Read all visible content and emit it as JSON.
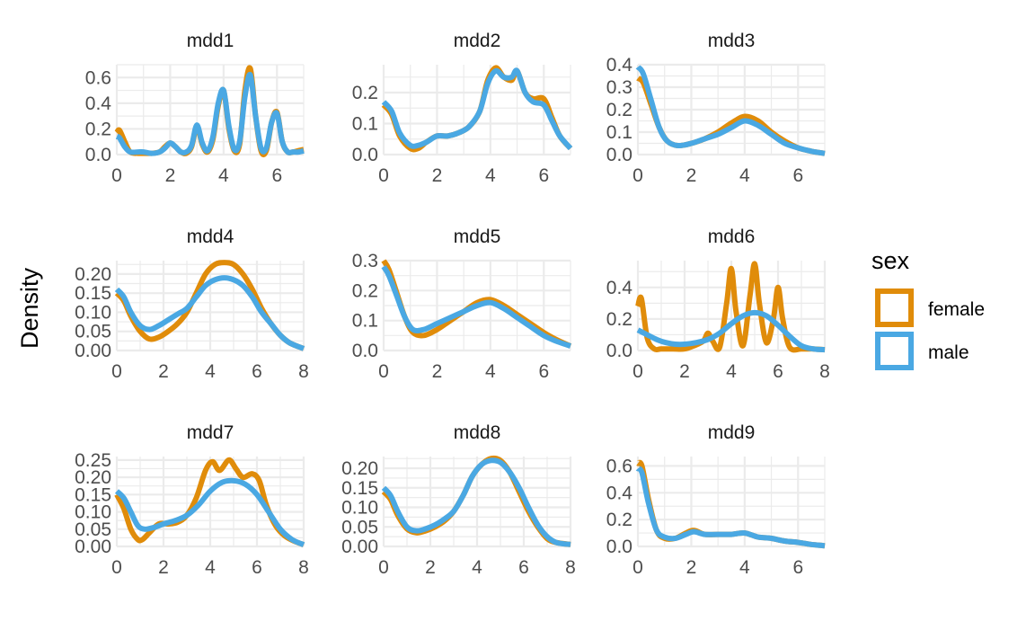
{
  "colors": {
    "female": "#E08C0A",
    "male": "#4AA8E3",
    "grid": "#EBEBEB"
  },
  "legend": {
    "title": "sex",
    "entries": [
      {
        "label": "female",
        "color": "#E08C0A"
      },
      {
        "label": "male",
        "color": "#4AA8E3"
      }
    ]
  },
  "y_axis_label": "Density",
  "chart_data": [
    {
      "type": "line",
      "title": "mdd1",
      "xlim": [
        0,
        7
      ],
      "ylim": [
        0,
        0.7
      ],
      "x_ticks": [
        0,
        2,
        4,
        6
      ],
      "y_ticks": [
        0,
        0.2,
        0.4,
        0.6
      ],
      "y_tick_labels": [
        "0.0",
        "0.2",
        "0.4",
        "0.6"
      ],
      "series": [
        {
          "name": "female",
          "x": [
            0,
            0.1,
            0.3,
            0.5,
            0.8,
            1,
            1.3,
            1.6,
            1.8,
            2,
            2.2,
            2.4,
            2.6,
            2.8,
            3,
            3.2,
            3.4,
            3.6,
            3.8,
            4,
            4.2,
            4.4,
            4.6,
            4.8,
            5,
            5.2,
            5.4,
            5.6,
            5.8,
            6,
            6.2,
            6.4,
            6.6,
            6.8,
            7
          ],
          "y": [
            0.17,
            0.19,
            0.1,
            0.02,
            0.01,
            0.01,
            0.01,
            0.02,
            0.06,
            0.09,
            0.06,
            0.02,
            0.01,
            0.06,
            0.22,
            0.08,
            0.02,
            0.12,
            0.38,
            0.5,
            0.2,
            0.03,
            0.08,
            0.5,
            0.67,
            0.3,
            0.03,
            0.03,
            0.25,
            0.33,
            0.1,
            0.02,
            0.02,
            0.03,
            0.04
          ]
        },
        {
          "name": "male",
          "x": [
            0,
            0.1,
            0.3,
            0.5,
            0.8,
            1,
            1.3,
            1.6,
            1.8,
            2,
            2.2,
            2.4,
            2.6,
            2.8,
            3,
            3.2,
            3.4,
            3.6,
            3.8,
            4,
            4.2,
            4.4,
            4.6,
            4.8,
            5,
            5.2,
            5.4,
            5.6,
            5.8,
            6,
            6.2,
            6.4,
            6.6,
            6.8,
            7
          ],
          "y": [
            0.14,
            0.13,
            0.06,
            0.02,
            0.02,
            0.02,
            0.01,
            0.02,
            0.05,
            0.09,
            0.06,
            0.02,
            0.02,
            0.07,
            0.23,
            0.09,
            0.03,
            0.14,
            0.4,
            0.5,
            0.22,
            0.04,
            0.1,
            0.45,
            0.62,
            0.3,
            0.05,
            0.05,
            0.25,
            0.32,
            0.1,
            0.02,
            0.02,
            0.02,
            0.03
          ]
        }
      ]
    },
    {
      "type": "line",
      "title": "mdd2",
      "xlim": [
        0,
        7
      ],
      "ylim": [
        0,
        0.29
      ],
      "x_ticks": [
        0,
        2,
        4,
        6
      ],
      "y_ticks": [
        0,
        0.1,
        0.2
      ],
      "y_tick_labels": [
        "0.0",
        "0.1",
        "0.2"
      ],
      "series": [
        {
          "name": "female",
          "x": [
            0,
            0.3,
            0.6,
            1,
            1.3,
            1.6,
            2,
            2.4,
            2.8,
            3.2,
            3.6,
            3.9,
            4.2,
            4.5,
            4.8,
            5,
            5.3,
            5.6,
            6,
            6.3,
            6.6,
            7
          ],
          "y": [
            0.16,
            0.13,
            0.06,
            0.02,
            0.02,
            0.04,
            0.06,
            0.06,
            0.07,
            0.09,
            0.14,
            0.24,
            0.28,
            0.25,
            0.24,
            0.27,
            0.2,
            0.18,
            0.18,
            0.12,
            0.06,
            0.02
          ]
        },
        {
          "name": "male",
          "x": [
            0,
            0.3,
            0.6,
            1,
            1.3,
            1.6,
            2,
            2.4,
            2.8,
            3.2,
            3.6,
            3.9,
            4.2,
            4.5,
            4.8,
            5,
            5.3,
            5.6,
            6,
            6.3,
            6.6,
            7
          ],
          "y": [
            0.17,
            0.14,
            0.07,
            0.03,
            0.03,
            0.04,
            0.06,
            0.06,
            0.07,
            0.09,
            0.14,
            0.23,
            0.27,
            0.25,
            0.25,
            0.27,
            0.2,
            0.17,
            0.16,
            0.11,
            0.06,
            0.02
          ]
        }
      ]
    },
    {
      "type": "line",
      "title": "mdd3",
      "xlim": [
        0,
        7
      ],
      "ylim": [
        0,
        0.4
      ],
      "x_ticks": [
        0,
        2,
        4,
        6
      ],
      "y_ticks": [
        0,
        0.1,
        0.2,
        0.3,
        0.4
      ],
      "y_tick_labels": [
        "0.0",
        "0.1",
        "0.2",
        "0.3",
        "0.4"
      ],
      "series": [
        {
          "name": "female",
          "x": [
            0,
            0.2,
            0.5,
            0.8,
            1.1,
            1.5,
            2,
            2.5,
            3,
            3.5,
            4,
            4.5,
            5,
            5.5,
            6,
            6.5,
            7
          ],
          "y": [
            0.34,
            0.32,
            0.22,
            0.12,
            0.06,
            0.04,
            0.05,
            0.07,
            0.1,
            0.14,
            0.17,
            0.15,
            0.1,
            0.06,
            0.03,
            0.015,
            0.005
          ]
        },
        {
          "name": "male",
          "x": [
            0,
            0.2,
            0.5,
            0.8,
            1.1,
            1.5,
            2,
            2.5,
            3,
            3.5,
            4,
            4.5,
            5,
            5.5,
            6,
            6.5,
            7
          ],
          "y": [
            0.39,
            0.36,
            0.24,
            0.12,
            0.06,
            0.04,
            0.05,
            0.07,
            0.09,
            0.12,
            0.15,
            0.13,
            0.09,
            0.05,
            0.03,
            0.015,
            0.005
          ]
        }
      ]
    },
    {
      "type": "line",
      "title": "mdd4",
      "xlim": [
        0,
        8
      ],
      "ylim": [
        0,
        0.235
      ],
      "x_ticks": [
        0,
        2,
        4,
        6,
        8
      ],
      "y_ticks": [
        0,
        0.05,
        0.1,
        0.15,
        0.2
      ],
      "y_tick_labels": [
        "0.00",
        "0.05",
        "0.10",
        "0.15",
        "0.20"
      ],
      "series": [
        {
          "name": "female",
          "x": [
            0,
            0.3,
            0.6,
            1,
            1.4,
            1.8,
            2.2,
            2.6,
            3,
            3.4,
            3.8,
            4.2,
            4.6,
            5,
            5.4,
            5.8,
            6.2,
            6.6,
            7,
            7.4,
            8
          ],
          "y": [
            0.15,
            0.13,
            0.09,
            0.05,
            0.03,
            0.035,
            0.05,
            0.07,
            0.1,
            0.15,
            0.2,
            0.225,
            0.23,
            0.225,
            0.2,
            0.16,
            0.11,
            0.07,
            0.04,
            0.02,
            0.005
          ]
        },
        {
          "name": "male",
          "x": [
            0,
            0.3,
            0.6,
            1,
            1.4,
            1.8,
            2.2,
            2.6,
            3,
            3.4,
            3.8,
            4.2,
            4.6,
            5,
            5.4,
            5.8,
            6.2,
            6.6,
            7,
            7.4,
            8
          ],
          "y": [
            0.16,
            0.14,
            0.1,
            0.065,
            0.055,
            0.065,
            0.08,
            0.095,
            0.11,
            0.14,
            0.17,
            0.185,
            0.19,
            0.185,
            0.17,
            0.14,
            0.1,
            0.07,
            0.04,
            0.02,
            0.005
          ]
        }
      ]
    },
    {
      "type": "line",
      "title": "mdd5",
      "xlim": [
        0,
        7
      ],
      "ylim": [
        0,
        0.3
      ],
      "x_ticks": [
        0,
        2,
        4,
        6
      ],
      "y_ticks": [
        0,
        0.1,
        0.2,
        0.3
      ],
      "y_tick_labels": [
        "0.0",
        "0.1",
        "0.2",
        "0.3"
      ],
      "series": [
        {
          "name": "female",
          "x": [
            0,
            0.2,
            0.5,
            0.8,
            1.1,
            1.5,
            2,
            2.5,
            3,
            3.5,
            4,
            4.5,
            5,
            5.5,
            6,
            6.5,
            7
          ],
          "y": [
            0.3,
            0.27,
            0.19,
            0.11,
            0.06,
            0.05,
            0.07,
            0.1,
            0.13,
            0.16,
            0.17,
            0.15,
            0.12,
            0.09,
            0.06,
            0.035,
            0.015
          ]
        },
        {
          "name": "male",
          "x": [
            0,
            0.2,
            0.5,
            0.8,
            1.1,
            1.5,
            2,
            2.5,
            3,
            3.5,
            4,
            4.5,
            5,
            5.5,
            6,
            6.5,
            7
          ],
          "y": [
            0.28,
            0.25,
            0.18,
            0.11,
            0.07,
            0.07,
            0.09,
            0.11,
            0.13,
            0.15,
            0.16,
            0.14,
            0.11,
            0.08,
            0.05,
            0.03,
            0.015
          ]
        }
      ]
    },
    {
      "type": "line",
      "title": "mdd6",
      "xlim": [
        0,
        8
      ],
      "ylim": [
        0,
        0.57
      ],
      "x_ticks": [
        0,
        2,
        4,
        6,
        8
      ],
      "y_ticks": [
        0,
        0.2,
        0.4
      ],
      "y_tick_labels": [
        "0.0",
        "0.2",
        "0.4"
      ],
      "series": [
        {
          "name": "female",
          "x": [
            0,
            0.15,
            0.4,
            0.7,
            1,
            1.5,
            2,
            2.4,
            2.8,
            3,
            3.2,
            3.5,
            3.8,
            4,
            4.2,
            4.5,
            4.8,
            5,
            5.2,
            5.5,
            5.8,
            6,
            6.2,
            6.5,
            7,
            7.5,
            8
          ],
          "y": [
            0.28,
            0.33,
            0.08,
            0.01,
            0.01,
            0.01,
            0.01,
            0.03,
            0.06,
            0.11,
            0.06,
            0.02,
            0.3,
            0.52,
            0.25,
            0.03,
            0.35,
            0.55,
            0.3,
            0.05,
            0.2,
            0.4,
            0.2,
            0.02,
            0.01,
            0.01,
            0.005
          ]
        },
        {
          "name": "male",
          "x": [
            0,
            0.4,
            0.8,
            1.2,
            1.6,
            2,
            2.5,
            3,
            3.5,
            4,
            4.5,
            5,
            5.5,
            6,
            6.5,
            7,
            7.5,
            8
          ],
          "y": [
            0.13,
            0.1,
            0.07,
            0.05,
            0.04,
            0.04,
            0.05,
            0.07,
            0.11,
            0.17,
            0.22,
            0.24,
            0.22,
            0.16,
            0.09,
            0.03,
            0.01,
            0.005
          ]
        }
      ]
    },
    {
      "type": "line",
      "title": "mdd7",
      "xlim": [
        0,
        8
      ],
      "ylim": [
        0,
        0.26
      ],
      "x_ticks": [
        0,
        2,
        4,
        6,
        8
      ],
      "y_ticks": [
        0,
        0.05,
        0.1,
        0.15,
        0.2,
        0.25
      ],
      "y_tick_labels": [
        "0.00",
        "0.05",
        "0.10",
        "0.15",
        "0.20",
        "0.25"
      ],
      "series": [
        {
          "name": "female",
          "x": [
            0,
            0.3,
            0.6,
            0.9,
            1.1,
            1.4,
            1.8,
            2.2,
            2.6,
            3,
            3.4,
            3.8,
            4.1,
            4.4,
            4.8,
            5.1,
            5.4,
            5.8,
            6.1,
            6.4,
            6.8,
            7.2,
            7.6,
            8
          ],
          "y": [
            0.15,
            0.11,
            0.05,
            0.02,
            0.02,
            0.04,
            0.065,
            0.065,
            0.07,
            0.09,
            0.14,
            0.22,
            0.245,
            0.22,
            0.25,
            0.225,
            0.2,
            0.21,
            0.19,
            0.12,
            0.06,
            0.03,
            0.015,
            0.005
          ]
        },
        {
          "name": "male",
          "x": [
            0,
            0.3,
            0.6,
            0.9,
            1.2,
            1.6,
            2,
            2.5,
            3,
            3.5,
            4,
            4.5,
            5,
            5.5,
            6,
            6.5,
            7,
            7.5,
            8
          ],
          "y": [
            0.16,
            0.14,
            0.1,
            0.06,
            0.05,
            0.055,
            0.065,
            0.075,
            0.09,
            0.12,
            0.16,
            0.185,
            0.19,
            0.18,
            0.15,
            0.1,
            0.05,
            0.02,
            0.005
          ]
        }
      ]
    },
    {
      "type": "line",
      "title": "mdd8",
      "xlim": [
        0,
        8
      ],
      "ylim": [
        0,
        0.23
      ],
      "x_ticks": [
        0,
        2,
        4,
        6,
        8
      ],
      "y_ticks": [
        0,
        0.05,
        0.1,
        0.15,
        0.2
      ],
      "y_tick_labels": [
        "0.00",
        "0.05",
        "0.10",
        "0.15",
        "0.20"
      ],
      "series": [
        {
          "name": "female",
          "x": [
            0,
            0.3,
            0.6,
            1,
            1.4,
            1.8,
            2.2,
            2.6,
            3,
            3.4,
            3.8,
            4.2,
            4.6,
            5,
            5.4,
            5.8,
            6.2,
            6.6,
            7,
            7.4,
            8
          ],
          "y": [
            0.14,
            0.12,
            0.08,
            0.045,
            0.035,
            0.04,
            0.05,
            0.065,
            0.09,
            0.13,
            0.18,
            0.21,
            0.225,
            0.22,
            0.19,
            0.14,
            0.09,
            0.05,
            0.02,
            0.01,
            0.005
          ]
        },
        {
          "name": "male",
          "x": [
            0,
            0.3,
            0.6,
            1,
            1.4,
            1.8,
            2.2,
            2.6,
            3,
            3.4,
            3.8,
            4.2,
            4.6,
            5,
            5.4,
            5.8,
            6.2,
            6.6,
            7,
            7.4,
            8
          ],
          "y": [
            0.15,
            0.13,
            0.09,
            0.05,
            0.04,
            0.045,
            0.055,
            0.07,
            0.09,
            0.13,
            0.18,
            0.21,
            0.22,
            0.215,
            0.19,
            0.15,
            0.1,
            0.055,
            0.025,
            0.01,
            0.005
          ]
        }
      ]
    },
    {
      "type": "line",
      "title": "mdd9",
      "xlim": [
        0,
        7
      ],
      "ylim": [
        0,
        0.67
      ],
      "x_ticks": [
        0,
        2,
        4,
        6
      ],
      "y_ticks": [
        0,
        0.2,
        0.4,
        0.6
      ],
      "y_tick_labels": [
        "0.0",
        "0.2",
        "0.4",
        "0.6"
      ],
      "series": [
        {
          "name": "female",
          "x": [
            0,
            0.15,
            0.4,
            0.7,
            1,
            1.4,
            1.8,
            2.1,
            2.5,
            3,
            3.5,
            4,
            4.5,
            5,
            5.5,
            6,
            6.5,
            7
          ],
          "y": [
            0.62,
            0.6,
            0.35,
            0.12,
            0.06,
            0.06,
            0.1,
            0.12,
            0.09,
            0.09,
            0.09,
            0.1,
            0.07,
            0.06,
            0.04,
            0.03,
            0.015,
            0.005
          ]
        },
        {
          "name": "male",
          "x": [
            0,
            0.15,
            0.4,
            0.7,
            1,
            1.4,
            1.8,
            2.1,
            2.5,
            3,
            3.5,
            4,
            4.5,
            5,
            5.5,
            6,
            6.5,
            7
          ],
          "y": [
            0.58,
            0.55,
            0.32,
            0.12,
            0.07,
            0.06,
            0.09,
            0.11,
            0.09,
            0.09,
            0.09,
            0.1,
            0.07,
            0.06,
            0.04,
            0.03,
            0.015,
            0.005
          ]
        }
      ]
    }
  ]
}
